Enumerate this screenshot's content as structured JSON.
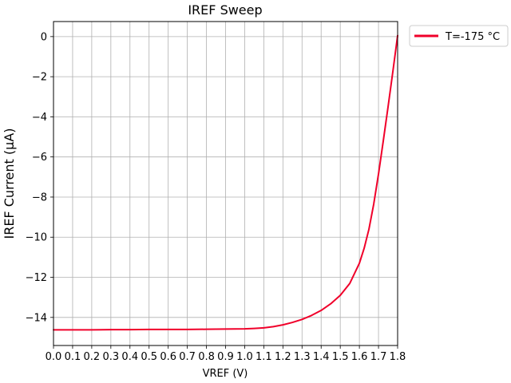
{
  "chart_data": {
    "type": "line",
    "title": "IREF Sweep",
    "xlabel": "VREF (V)",
    "ylabel": "IREF Current (µA)",
    "xlim": [
      0.0,
      1.8
    ],
    "ylim": [
      -15.4,
      0.75
    ],
    "xticks": [
      0.0,
      0.1,
      0.2,
      0.3,
      0.4,
      0.5,
      0.6,
      0.7,
      0.8,
      0.9,
      1.0,
      1.1,
      1.2,
      1.3,
      1.4,
      1.5,
      1.6,
      1.7,
      1.8
    ],
    "xtick_labels": [
      "0.0",
      "0.1",
      "0.2",
      "0.3",
      "0.4",
      "0.5",
      "0.6",
      "0.7",
      "0.8",
      "0.9",
      "1.0",
      "1.1",
      "1.2",
      "1.3",
      "1.4",
      "1.5",
      "1.6",
      "1.7",
      "1.8"
    ],
    "yticks": [
      0,
      -2,
      -4,
      -6,
      -8,
      -10,
      -12,
      -14
    ],
    "ytick_labels": [
      "0",
      "−2",
      "−4",
      "−6",
      "−8",
      "−10",
      "−12",
      "−14"
    ],
    "grid": true,
    "legend_position": "outside-top-right",
    "series": [
      {
        "name": "T=-175 °C",
        "color": "#f0002a",
        "x": [
          0.0,
          0.1,
          0.2,
          0.3,
          0.4,
          0.5,
          0.6,
          0.7,
          0.8,
          0.9,
          1.0,
          1.05,
          1.1,
          1.15,
          1.2,
          1.25,
          1.3,
          1.35,
          1.4,
          1.45,
          1.5,
          1.55,
          1.6,
          1.625,
          1.65,
          1.675,
          1.7,
          1.725,
          1.75,
          1.775,
          1.8
        ],
        "y": [
          -14.62,
          -14.62,
          -14.62,
          -14.61,
          -14.61,
          -14.6,
          -14.6,
          -14.6,
          -14.59,
          -14.58,
          -14.57,
          -14.55,
          -14.52,
          -14.46,
          -14.37,
          -14.25,
          -14.1,
          -13.9,
          -13.65,
          -13.32,
          -12.9,
          -12.3,
          -11.3,
          -10.55,
          -9.6,
          -8.35,
          -6.85,
          -5.2,
          -3.5,
          -1.75,
          0.05
        ]
      }
    ]
  }
}
